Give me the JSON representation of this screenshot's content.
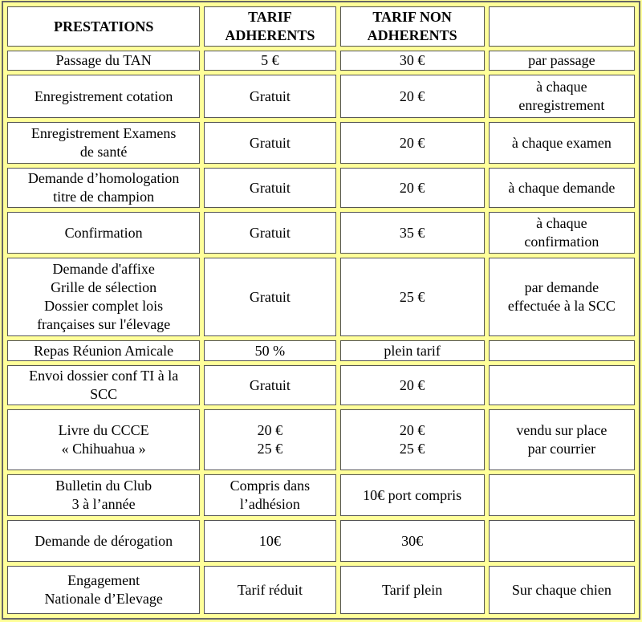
{
  "table": {
    "header": [
      "PRESTATIONS",
      "TARIF\nADHERENTS",
      "TARIF NON\nADHERENTS",
      null
    ],
    "rows": [
      [
        "Passage du TAN",
        "5 €",
        "30 €",
        "par passage"
      ],
      [
        "Enregistrement cotation",
        "Gratuit",
        "20 €",
        "à chaque\nenregistrement"
      ],
      [
        "Enregistrement Examens\nde santé",
        "Gratuit",
        "20 €",
        "à chaque examen"
      ],
      [
        "Demande d’homologation\ntitre de champion",
        "Gratuit",
        "20 €",
        "à chaque demande"
      ],
      [
        "Confirmation",
        "Gratuit",
        "35 €",
        "à chaque\nconfirmation"
      ],
      [
        "Demande d'affixe\nGrille de sélection\nDossier complet lois\nfrançaises sur l'élevage",
        "Gratuit",
        "25 €",
        "par demande\neffectuée à la SCC"
      ],
      [
        "Repas Réunion Amicale",
        "50 %",
        "plein tarif",
        null
      ],
      [
        "Envoi dossier conf TI à la\nSCC",
        "Gratuit",
        "20 €",
        null
      ],
      [
        "Livre du CCCE\n« Chihuahua »",
        "20 €\n25 €",
        "20 €\n25 €",
        "vendu sur place\npar courrier"
      ],
      [
        "Bulletin du Club\n3 à l’année",
        "Compris dans\nl’adhésion",
        "10€ port compris",
        null
      ],
      [
        "Demande de dérogation",
        "10€",
        "30€",
        null
      ],
      [
        "Engagement\nNationale d’Elevage",
        "Tarif réduit",
        "Tarif plein",
        "Sur chaque chien"
      ]
    ]
  }
}
